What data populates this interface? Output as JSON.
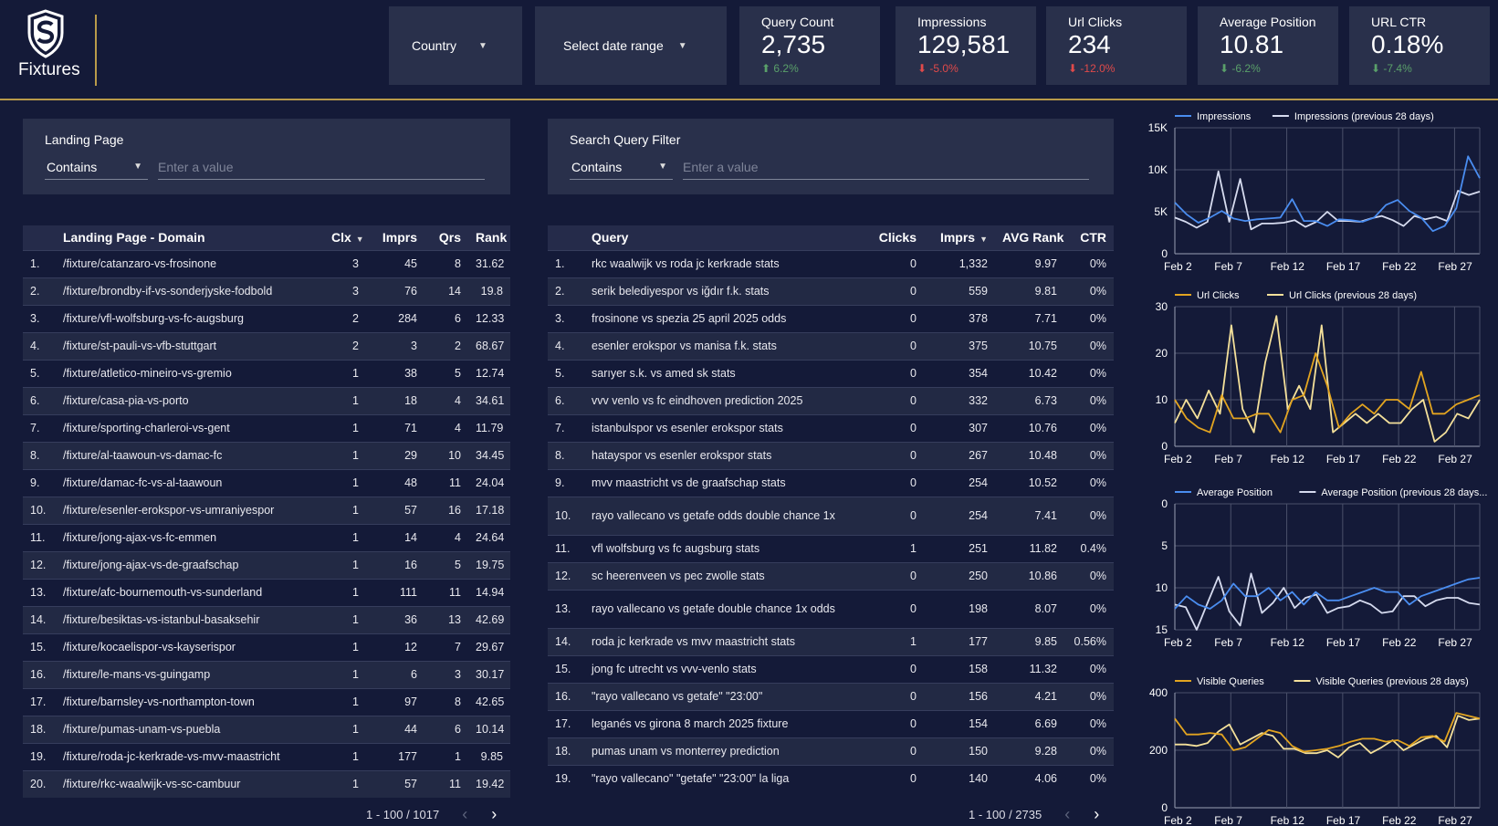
{
  "brand": {
    "name": "Fixtures"
  },
  "controls": {
    "country": "Country",
    "date_range": "Select date range"
  },
  "kpis": [
    {
      "label": "Query Count",
      "value": "2,735",
      "delta": "6.2%",
      "dir": "up"
    },
    {
      "label": "Impressions",
      "value": "129,581",
      "delta": "-5.0%",
      "dir": "down"
    },
    {
      "label": "Url Clicks",
      "value": "234",
      "delta": "-12.0%",
      "dir": "down"
    },
    {
      "label": "Average Position",
      "value": "10.81",
      "delta": "-6.2%",
      "dir": "up"
    },
    {
      "label": "URL CTR",
      "value": "0.18%",
      "delta": "-7.4%",
      "dir": "up"
    }
  ],
  "filters": {
    "landing": {
      "title": "Landing Page",
      "operator": "Contains",
      "placeholder": "Enter a value"
    },
    "query": {
      "title": "Search Query Filter",
      "operator": "Contains",
      "placeholder": "Enter a value"
    }
  },
  "landing_table": {
    "headers": [
      "Landing Page - Domain",
      "Clx",
      "Imprs",
      "Qrs",
      "Rank"
    ],
    "rows": [
      [
        "1.",
        "/fixture/catanzaro-vs-frosinone",
        "3",
        "45",
        "8",
        "31.62"
      ],
      [
        "2.",
        "/fixture/brondby-if-vs-sonderjyske-fodbold",
        "3",
        "76",
        "14",
        "19.8"
      ],
      [
        "3.",
        "/fixture/vfl-wolfsburg-vs-fc-augsburg",
        "2",
        "284",
        "6",
        "12.33"
      ],
      [
        "4.",
        "/fixture/st-pauli-vs-vfb-stuttgart",
        "2",
        "3",
        "2",
        "68.67"
      ],
      [
        "5.",
        "/fixture/atletico-mineiro-vs-gremio",
        "1",
        "38",
        "5",
        "12.74"
      ],
      [
        "6.",
        "/fixture/casa-pia-vs-porto",
        "1",
        "18",
        "4",
        "34.61"
      ],
      [
        "7.",
        "/fixture/sporting-charleroi-vs-gent",
        "1",
        "71",
        "4",
        "11.79"
      ],
      [
        "8.",
        "/fixture/al-taawoun-vs-damac-fc",
        "1",
        "29",
        "10",
        "34.45"
      ],
      [
        "9.",
        "/fixture/damac-fc-vs-al-taawoun",
        "1",
        "48",
        "11",
        "24.04"
      ],
      [
        "10.",
        "/fixture/esenler-erokspor-vs-umraniyespor",
        "1",
        "57",
        "16",
        "17.18"
      ],
      [
        "11.",
        "/fixture/jong-ajax-vs-fc-emmen",
        "1",
        "14",
        "4",
        "24.64"
      ],
      [
        "12.",
        "/fixture/jong-ajax-vs-de-graafschap",
        "1",
        "16",
        "5",
        "19.75"
      ],
      [
        "13.",
        "/fixture/afc-bournemouth-vs-sunderland",
        "1",
        "111",
        "11",
        "14.94"
      ],
      [
        "14.",
        "/fixture/besiktas-vs-istanbul-basaksehir",
        "1",
        "36",
        "13",
        "42.69"
      ],
      [
        "15.",
        "/fixture/kocaelispor-vs-kayserispor",
        "1",
        "12",
        "7",
        "29.67"
      ],
      [
        "16.",
        "/fixture/le-mans-vs-guingamp",
        "1",
        "6",
        "3",
        "30.17"
      ],
      [
        "17.",
        "/fixture/barnsley-vs-northampton-town",
        "1",
        "97",
        "8",
        "42.65"
      ],
      [
        "18.",
        "/fixture/pumas-unam-vs-puebla",
        "1",
        "44",
        "6",
        "10.14"
      ],
      [
        "19.",
        "/fixture/roda-jc-kerkrade-vs-mvv-maastricht",
        "1",
        "177",
        "1",
        "9.85"
      ],
      [
        "20.",
        "/fixture/rkc-waalwijk-vs-sc-cambuur",
        "1",
        "57",
        "11",
        "19.42"
      ]
    ],
    "pager": "1 - 100 / 1017"
  },
  "query_table": {
    "headers": [
      "Query",
      "Clicks",
      "Imprs",
      "AVG Rank",
      "CTR"
    ],
    "rows": [
      [
        "1.",
        "rkc waalwijk vs roda jc kerkrade stats",
        "0",
        "1,332",
        "9.97",
        "0%"
      ],
      [
        "2.",
        "serik belediyespor vs iğdır f.k. stats",
        "0",
        "559",
        "9.81",
        "0%"
      ],
      [
        "3.",
        "frosinone vs spezia 25 april 2025 odds",
        "0",
        "378",
        "7.71",
        "0%"
      ],
      [
        "4.",
        "esenler erokspor vs manisa f.k. stats",
        "0",
        "375",
        "10.75",
        "0%"
      ],
      [
        "5.",
        "sarıyer s.k. vs amed sk stats",
        "0",
        "354",
        "10.42",
        "0%"
      ],
      [
        "6.",
        "vvv venlo vs fc eindhoven prediction 2025",
        "0",
        "332",
        "6.73",
        "0%"
      ],
      [
        "7.",
        "istanbulspor vs esenler erokspor stats",
        "0",
        "307",
        "10.76",
        "0%"
      ],
      [
        "8.",
        "hatayspor vs esenler erokspor stats",
        "0",
        "267",
        "10.48",
        "0%"
      ],
      [
        "9.",
        "mvv maastricht vs de graafschap stats",
        "0",
        "254",
        "10.52",
        "0%"
      ],
      [
        "10.",
        "rayo vallecano vs getafe odds double chance 1x",
        "0",
        "254",
        "7.41",
        "0%"
      ],
      [
        "11.",
        "vfl wolfsburg vs fc augsburg stats",
        "1",
        "251",
        "11.82",
        "0.4%"
      ],
      [
        "12.",
        "sc heerenveen vs pec zwolle stats",
        "0",
        "250",
        "10.86",
        "0%"
      ],
      [
        "13.",
        "rayo vallecano vs getafe double chance 1x odds",
        "0",
        "198",
        "8.07",
        "0%"
      ],
      [
        "14.",
        "roda jc kerkrade vs mvv maastricht stats",
        "1",
        "177",
        "9.85",
        "0.56%"
      ],
      [
        "15.",
        "jong fc utrecht vs vvv-venlo stats",
        "0",
        "158",
        "11.32",
        "0%"
      ],
      [
        "16.",
        "\"rayo vallecano vs getafe\" \"23:00\"",
        "0",
        "156",
        "4.21",
        "0%"
      ],
      [
        "17.",
        "leganés vs girona 8 march 2025 fixture",
        "0",
        "154",
        "6.69",
        "0%"
      ],
      [
        "18.",
        "pumas unam vs monterrey prediction",
        "0",
        "150",
        "9.28",
        "0%"
      ],
      [
        "19.",
        "\"rayo vallecano\" \"getafe\" \"23:00\" la liga",
        "0",
        "140",
        "4.06",
        "0%"
      ]
    ],
    "pager": "1 - 100 / 2735"
  },
  "chart_data": [
    {
      "type": "line",
      "x_ticks": [
        "Feb 2",
        "Feb 7",
        "Feb 12",
        "Feb 17",
        "Feb 22",
        "Feb 27"
      ],
      "y_ticks": [
        "0",
        "5K",
        "10K",
        "15K"
      ],
      "ylim": [
        0,
        15000
      ],
      "inverted": false,
      "legend": "top",
      "series": [
        {
          "name": "Impressions",
          "color": "#4a8df0",
          "values": [
            6100,
            4700,
            3700,
            4300,
            5100,
            4200,
            3900,
            4100,
            4200,
            4300,
            6500,
            3900,
            3900,
            3300,
            4100,
            4000,
            3800,
            4300,
            5800,
            6400,
            5100,
            4300,
            2700,
            3300,
            5400,
            11600,
            9000
          ]
        },
        {
          "name": "Impressions (previous 28 days)",
          "color": "#d6dbef",
          "values": [
            4300,
            3800,
            3100,
            3800,
            9800,
            3800,
            8900,
            2900,
            3600,
            3600,
            3700,
            4000,
            3200,
            3800,
            5000,
            3900,
            3900,
            3800,
            4200,
            4500,
            4000,
            3300,
            4500,
            4100,
            4400,
            3900,
            7500,
            7000,
            7400
          ]
        }
      ]
    },
    {
      "type": "line",
      "x_ticks": [
        "Feb 2",
        "Feb 7",
        "Feb 12",
        "Feb 17",
        "Feb 22",
        "Feb 27"
      ],
      "y_ticks": [
        "0",
        "10",
        "20",
        "30"
      ],
      "ylim": [
        0,
        30
      ],
      "inverted": false,
      "legend": "top",
      "series": [
        {
          "name": "Url Clicks",
          "color": "#e2a420",
          "values": [
            10,
            6,
            4,
            3,
            11,
            6,
            6,
            7,
            7,
            3,
            10,
            11,
            20,
            13,
            4,
            7,
            9,
            7,
            10,
            10,
            8,
            16,
            7,
            7,
            9,
            10,
            11
          ]
        },
        {
          "name": "Url Clicks (previous 28 days)",
          "color": "#f4e09a",
          "values": [
            5,
            10,
            6,
            12,
            7,
            26,
            8,
            3,
            18,
            28,
            8,
            13,
            8,
            26,
            3,
            5,
            7,
            5,
            7,
            5,
            5,
            8,
            10,
            1,
            3,
            7,
            6,
            10
          ]
        }
      ]
    },
    {
      "type": "line",
      "x_ticks": [
        "Feb 2",
        "Feb 7",
        "Feb 12",
        "Feb 17",
        "Feb 22",
        "Feb 27"
      ],
      "y_ticks": [
        "0",
        "5",
        "10",
        "15"
      ],
      "ylim": [
        0,
        15
      ],
      "inverted": true,
      "legend": "top",
      "series": [
        {
          "name": "Average Position",
          "color": "#4a8df0",
          "values": [
            12.5,
            11,
            12,
            12.5,
            11.5,
            9.5,
            11,
            11,
            10,
            11.5,
            10.5,
            12,
            10.5,
            11.5,
            11.5,
            11,
            10.5,
            10,
            10.5,
            10.5,
            12,
            11,
            10.5,
            10,
            9.5,
            9,
            8.8
          ]
        },
        {
          "name": "Average Position (previous 28 days...",
          "color": "#d6dbef",
          "values": [
            12,
            12.3,
            15,
            11.8,
            8.7,
            12.8,
            14.5,
            8.3,
            13,
            11.8,
            10,
            12.4,
            11.2,
            10.8,
            13,
            12.4,
            12.2,
            11.5,
            12,
            13,
            12.8,
            11,
            11,
            12.2,
            11.5,
            11.2,
            11.2,
            11.8,
            12
          ]
        }
      ]
    },
    {
      "type": "line",
      "x_ticks": [
        "Feb 2",
        "Feb 7",
        "Feb 12",
        "Feb 17",
        "Feb 22",
        "Feb 27"
      ],
      "y_ticks": [
        "0",
        "200",
        "400"
      ],
      "ylim": [
        0,
        400
      ],
      "inverted": false,
      "legend": "top",
      "series": [
        {
          "name": "Visible Queries",
          "color": "#e2a420",
          "values": [
            310,
            255,
            255,
            260,
            255,
            200,
            210,
            240,
            270,
            260,
            215,
            195,
            200,
            205,
            215,
            230,
            240,
            240,
            230,
            235,
            215,
            245,
            250,
            230,
            330,
            320,
            310
          ]
        },
        {
          "name": "Visible Queries (previous 28 days)",
          "color": "#f4e09a",
          "values": [
            220,
            220,
            215,
            225,
            265,
            290,
            220,
            240,
            260,
            250,
            205,
            205,
            190,
            190,
            200,
            175,
            210,
            225,
            190,
            210,
            235,
            200,
            220,
            240,
            250,
            210,
            320,
            305,
            310
          ]
        }
      ]
    }
  ]
}
